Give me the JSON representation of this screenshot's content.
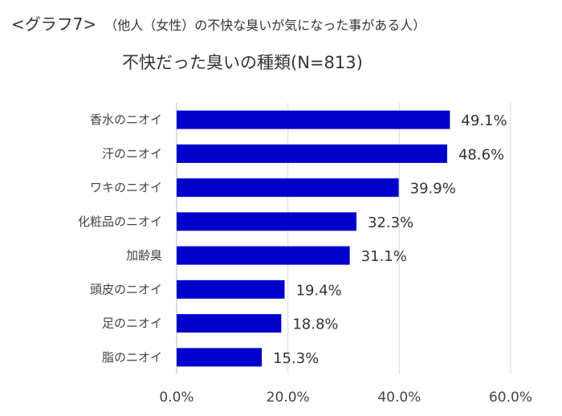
{
  "header": {
    "graph_label": "<グラフ7>",
    "subtitle": "（他人（女性）の不快な臭いが気になった事がある人）"
  },
  "colors": {
    "bar": "#0000cc",
    "grid": "#d9d9d9"
  },
  "chart_data": {
    "type": "bar",
    "orientation": "horizontal",
    "title": "不快だった臭いの種類(N=813)",
    "categories": [
      "香水のニオイ",
      "汗のニオイ",
      "ワキのニオイ",
      "化粧品のニオイ",
      "加齢臭",
      "頭皮のニオイ",
      "足のニオイ",
      "脂のニオイ"
    ],
    "values": [
      49.1,
      48.6,
      39.9,
      32.3,
      31.1,
      19.4,
      18.8,
      15.3
    ],
    "value_labels": [
      "49.1%",
      "48.6%",
      "39.9%",
      "32.3%",
      "31.1%",
      "19.4%",
      "18.8%",
      "15.3%"
    ],
    "xlim": [
      0,
      60
    ],
    "xticks": [
      0,
      20,
      40,
      60
    ],
    "xtick_labels": [
      "0.0%",
      "20.0%",
      "40.0%",
      "60.0%"
    ],
    "grid": true,
    "legend": "none"
  }
}
